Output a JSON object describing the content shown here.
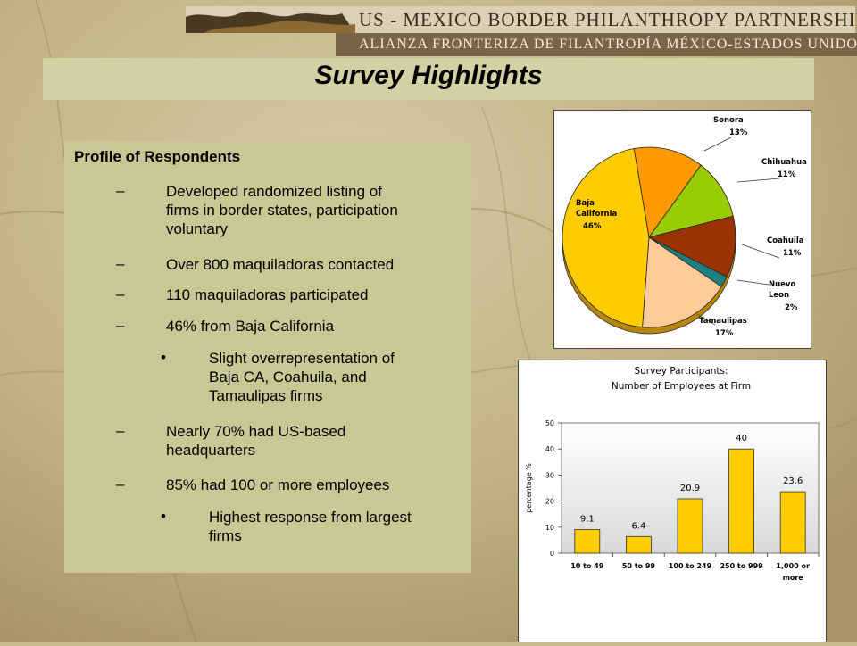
{
  "header": {
    "line1": "US - MEXICO BORDER PHILANTHROPY PARTNERSHIP",
    "line2": "ALIANZA FRONTERIZA DE FILANTROPÍA MÉXICO-ESTADOS UNIDOS"
  },
  "title": "Survey Highlights",
  "profile": {
    "heading": "Profile of Respondents",
    "items": [
      {
        "marker": "–",
        "lines": [
          "Developed randomized listing of",
          "firms in border states, participation",
          "voluntary"
        ]
      },
      {
        "marker": "–",
        "lines": [
          "Over 800 maquiladoras contacted"
        ]
      },
      {
        "marker": "–",
        "lines": [
          "110 maquiladoras participated"
        ]
      },
      {
        "marker": "–",
        "lines": [
          "46% from Baja California"
        ]
      },
      {
        "marker": "•",
        "lines": [
          "Slight overrepresentation of",
          "Baja CA, Coahuila, and",
          "Tamaulipas firms"
        ]
      },
      {
        "marker": "–",
        "lines": [
          "Nearly 70% had US-based",
          "headquarters"
        ]
      },
      {
        "marker": "–",
        "lines": [
          "85% had 100 or more employees"
        ]
      },
      {
        "marker": "•",
        "lines": [
          "Highest response from largest",
          "firms"
        ]
      }
    ]
  },
  "chart_data": [
    {
      "type": "pie",
      "title": "",
      "slices": [
        {
          "label": "Sonora",
          "value": 13,
          "value_label": "13%",
          "color": "#ff9900"
        },
        {
          "label": "Chihuahua",
          "value": 11,
          "value_label": "11%",
          "color": "#99cc00"
        },
        {
          "label": "Coahuila",
          "value": 11,
          "value_label": "11%",
          "color": "#993300"
        },
        {
          "label": "Nuevo Leon",
          "value": 2,
          "value_label": "2%",
          "color": "#1f8080"
        },
        {
          "label": "Tamaulipas",
          "value": 17,
          "value_label": "17%",
          "color": "#ffcc99"
        },
        {
          "label": "Baja California",
          "value": 46,
          "value_label": "46%",
          "color": "#ffcc00"
        }
      ]
    },
    {
      "type": "bar",
      "title": "Survey Participants:",
      "subtitle": "Number of Employees at Firm",
      "ylabel": "percentage %",
      "xlabel": "",
      "categories": [
        "10 to 49",
        "50 to 99",
        "100 to 249",
        "250 to 999",
        "1,000 or more"
      ],
      "values": [
        9.1,
        6.4,
        20.9,
        40,
        23.6
      ],
      "value_labels": [
        "9.1",
        "6.4",
        "20.9",
        "40",
        "23.6"
      ],
      "ylim": [
        0,
        50
      ],
      "yticks": [
        0,
        10,
        20,
        30,
        40,
        50
      ],
      "bar_color": "#ffcc00",
      "grid": false
    }
  ]
}
